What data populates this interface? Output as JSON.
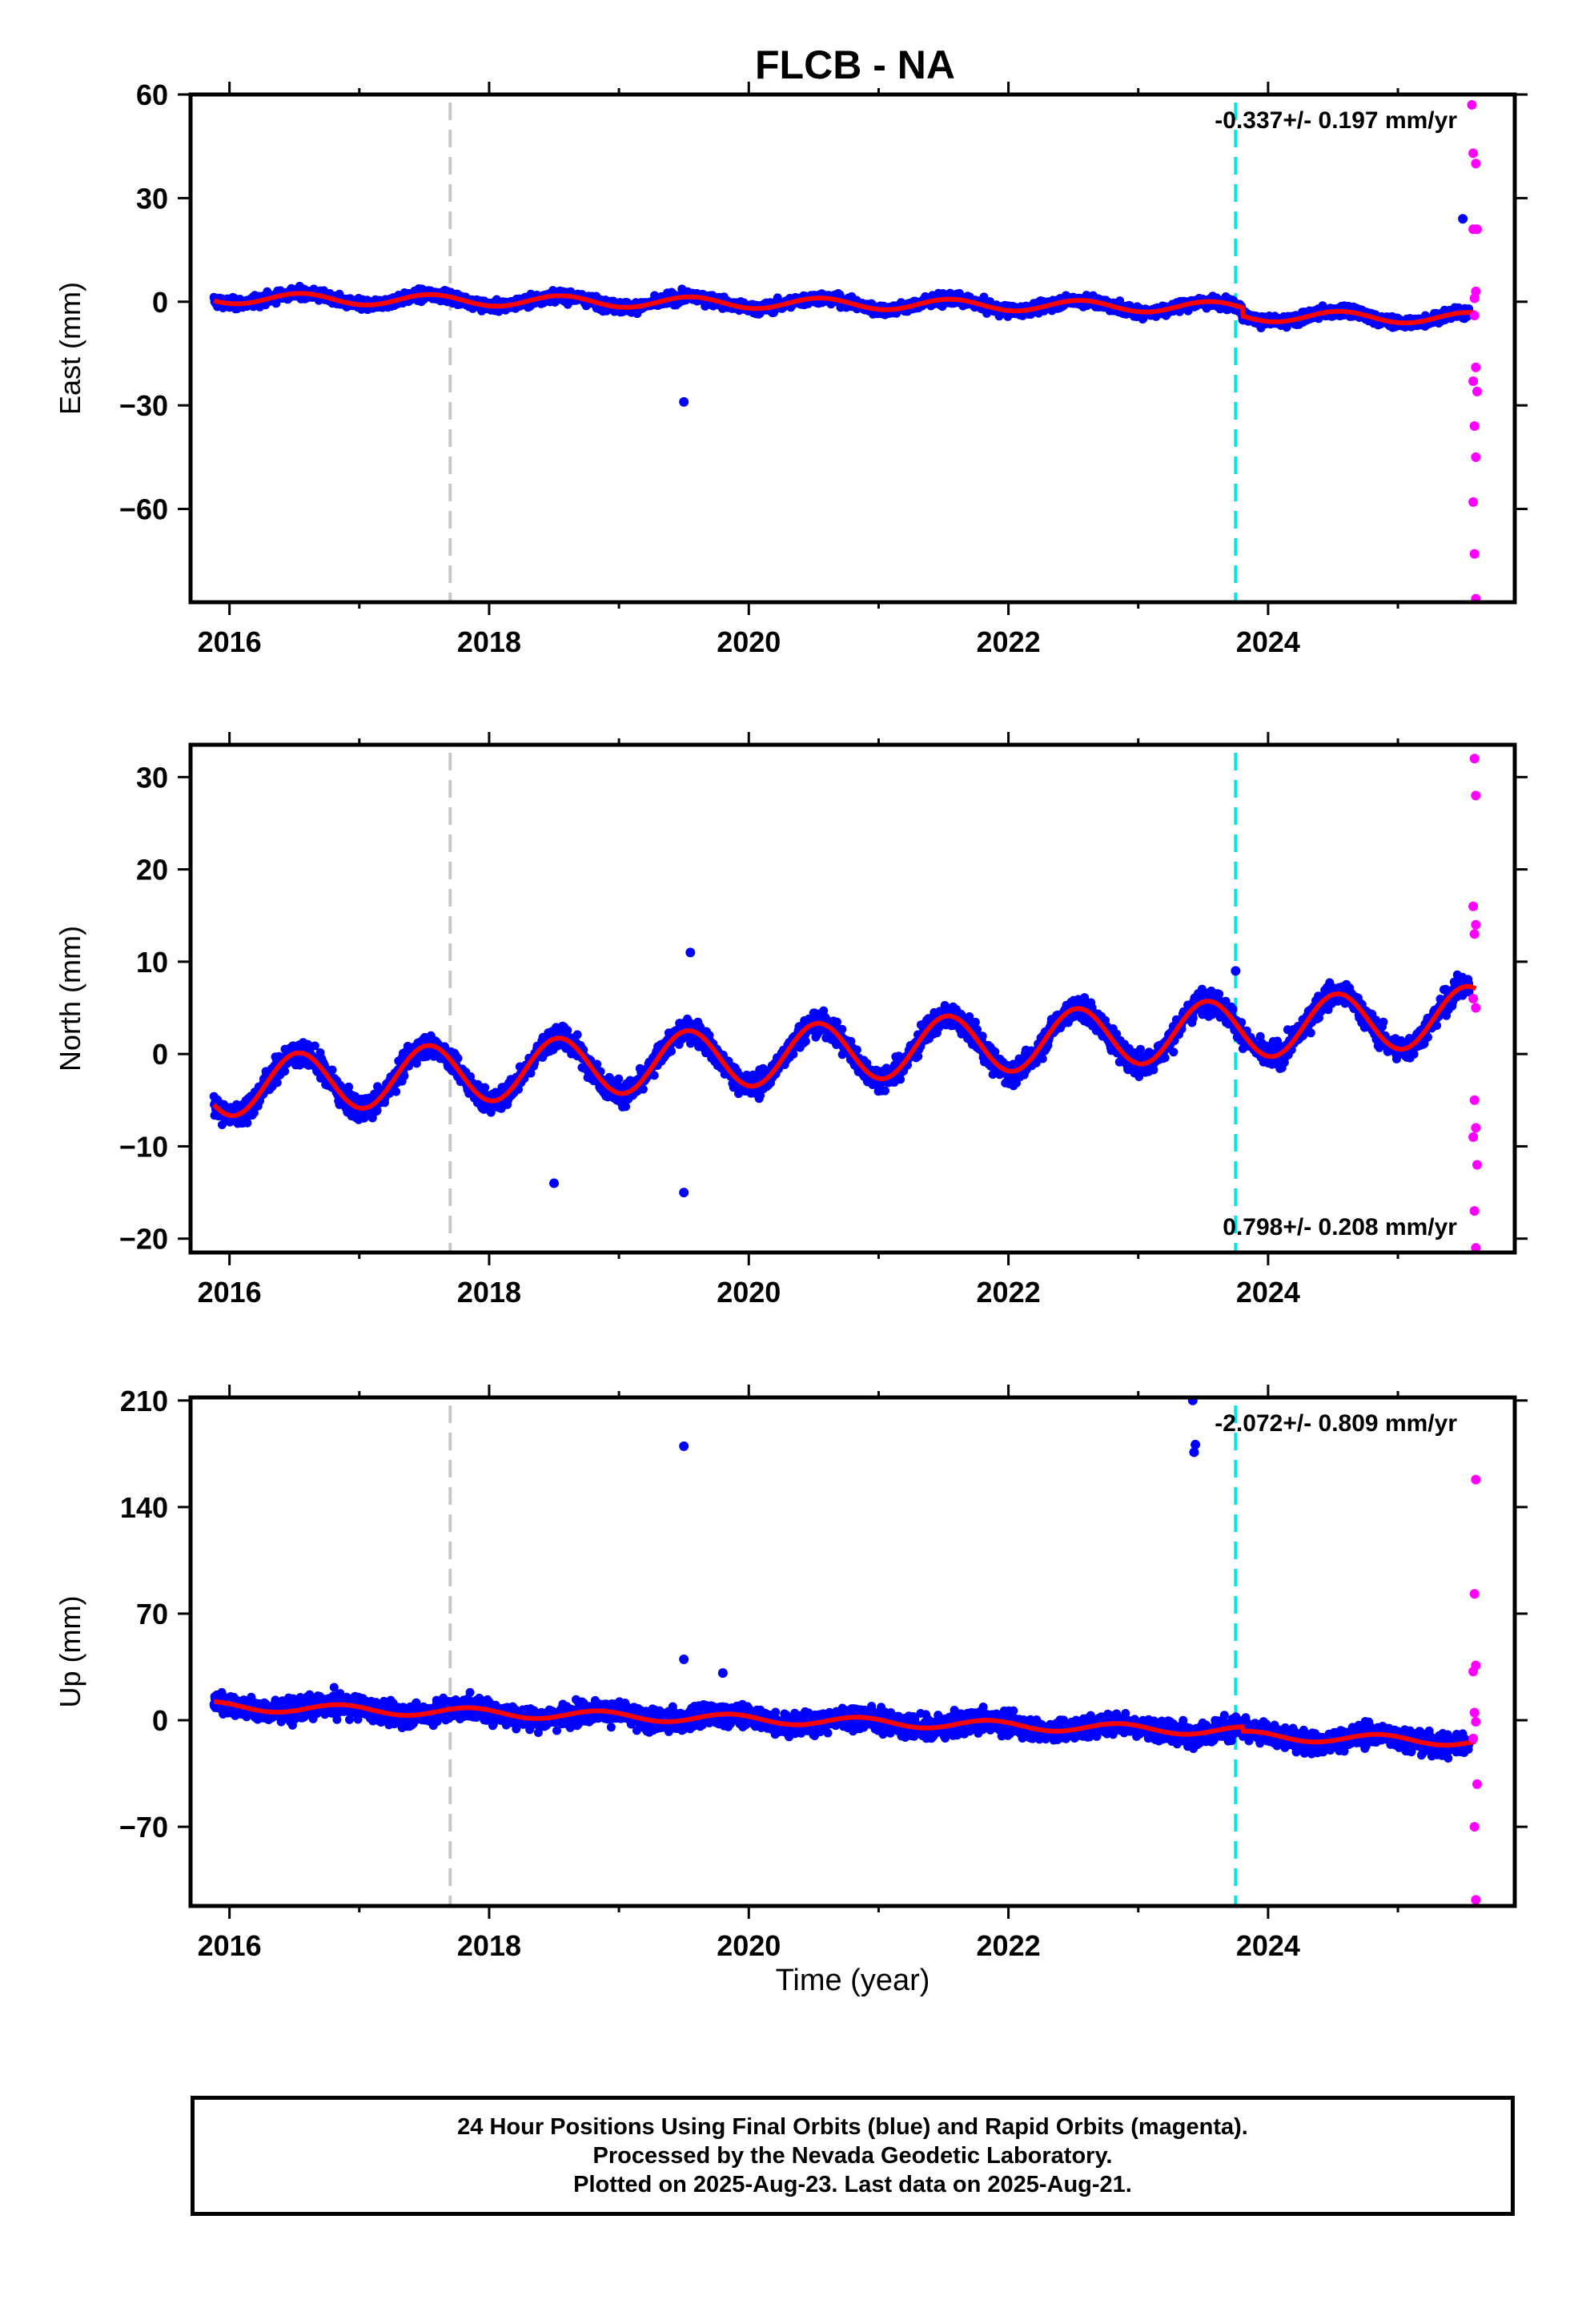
{
  "title": "FLCB - NA",
  "xlabel": "Time (year)",
  "colors": {
    "final_orbits": "#0000ff",
    "rapid_orbits": "#ff00ff",
    "model": "#ff0000",
    "vline_gray": "#c8c8c8",
    "vline_cyan": "#00e5e5"
  },
  "footer": {
    "line1": "24 Hour Positions Using Final Orbits (blue) and Rapid Orbits (magenta).",
    "line2": "Processed by the Nevada Geodetic Laboratory.",
    "line3": "Plotted on 2025-Aug-23. Last data on 2025-Aug-21."
  },
  "chart_data": [
    {
      "type": "scatter",
      "ylabel": "East (mm)",
      "xlim": [
        2015.7,
        2025.9
      ],
      "ylim": [
        -87,
        60
      ],
      "xticks": [
        "2016",
        "2018",
        "2020",
        "2022",
        "2024"
      ],
      "yticks": [
        "60",
        "30",
        "0",
        "−30",
        "−60"
      ],
      "rate_annotation": "-0.337+/- 0.197 mm/yr",
      "rate_position": "top-right",
      "vertical_lines": [
        {
          "x": 2017.7,
          "color": "gray"
        },
        {
          "x": 2023.75,
          "color": "cyan"
        }
      ],
      "outliers": [
        [
          2019.5,
          -29
        ],
        [
          2025.5,
          24
        ]
      ],
      "rapid_points": [
        [
          2025.57,
          57
        ],
        [
          2025.58,
          43
        ],
        [
          2025.6,
          40
        ],
        [
          2025.58,
          21
        ],
        [
          2025.61,
          21
        ],
        [
          2025.59,
          1
        ],
        [
          2025.6,
          3
        ],
        [
          2025.59,
          -4
        ],
        [
          2025.6,
          -19
        ],
        [
          2025.58,
          -23
        ],
        [
          2025.61,
          -26
        ],
        [
          2025.59,
          -36
        ],
        [
          2025.6,
          -45
        ],
        [
          2025.58,
          -58
        ],
        [
          2025.59,
          -73
        ],
        [
          2025.6,
          -86
        ]
      ]
    },
    {
      "type": "scatter",
      "ylabel": "North (mm)",
      "xlim": [
        2015.7,
        2025.9
      ],
      "ylim": [
        -21.5,
        33.5
      ],
      "xticks": [
        "2016",
        "2018",
        "2020",
        "2022",
        "2024"
      ],
      "yticks": [
        "30",
        "20",
        "10",
        "0",
        "−10",
        "−20"
      ],
      "rate_annotation": "0.798+/- 0.208 mm/yr",
      "rate_position": "bottom-right",
      "vertical_lines": [
        {
          "x": 2017.7,
          "color": "gray"
        },
        {
          "x": 2023.75,
          "color": "cyan"
        }
      ],
      "outliers": [
        [
          2018.5,
          -14
        ],
        [
          2019.5,
          -15
        ],
        [
          2019.55,
          11
        ],
        [
          2023.75,
          9
        ]
      ],
      "rapid_points": [
        [
          2025.59,
          32
        ],
        [
          2025.6,
          28
        ],
        [
          2025.58,
          16
        ],
        [
          2025.6,
          14
        ],
        [
          2025.59,
          13
        ],
        [
          2025.58,
          6
        ],
        [
          2025.6,
          5
        ],
        [
          2025.59,
          -5
        ],
        [
          2025.6,
          -8
        ],
        [
          2025.58,
          -9
        ],
        [
          2025.61,
          -12
        ],
        [
          2025.59,
          -17
        ],
        [
          2025.6,
          -21
        ]
      ]
    },
    {
      "type": "scatter",
      "ylabel": "Up (mm)",
      "xlim": [
        2015.7,
        2025.9
      ],
      "ylim": [
        -122,
        212
      ],
      "xticks": [
        "2016",
        "2018",
        "2020",
        "2022",
        "2024"
      ],
      "yticks": [
        "210",
        "140",
        "70",
        "0",
        "−70"
      ],
      "rate_annotation": "-2.072+/- 0.809 mm/yr",
      "rate_position": "top-right",
      "vertical_lines": [
        {
          "x": 2017.7,
          "color": "gray"
        },
        {
          "x": 2023.75,
          "color": "cyan"
        }
      ],
      "outliers": [
        [
          2019.5,
          180
        ],
        [
          2023.42,
          210
        ],
        [
          2023.43,
          176
        ],
        [
          2023.44,
          181
        ],
        [
          2019.5,
          40
        ],
        [
          2019.8,
          31
        ]
      ],
      "rapid_points": [
        [
          2025.6,
          158
        ],
        [
          2025.59,
          83
        ],
        [
          2025.6,
          36
        ],
        [
          2025.58,
          32
        ],
        [
          2025.59,
          5
        ],
        [
          2025.6,
          -1
        ],
        [
          2025.58,
          -12
        ],
        [
          2025.61,
          -42
        ],
        [
          2025.59,
          -70
        ],
        [
          2025.6,
          -118
        ]
      ]
    }
  ]
}
